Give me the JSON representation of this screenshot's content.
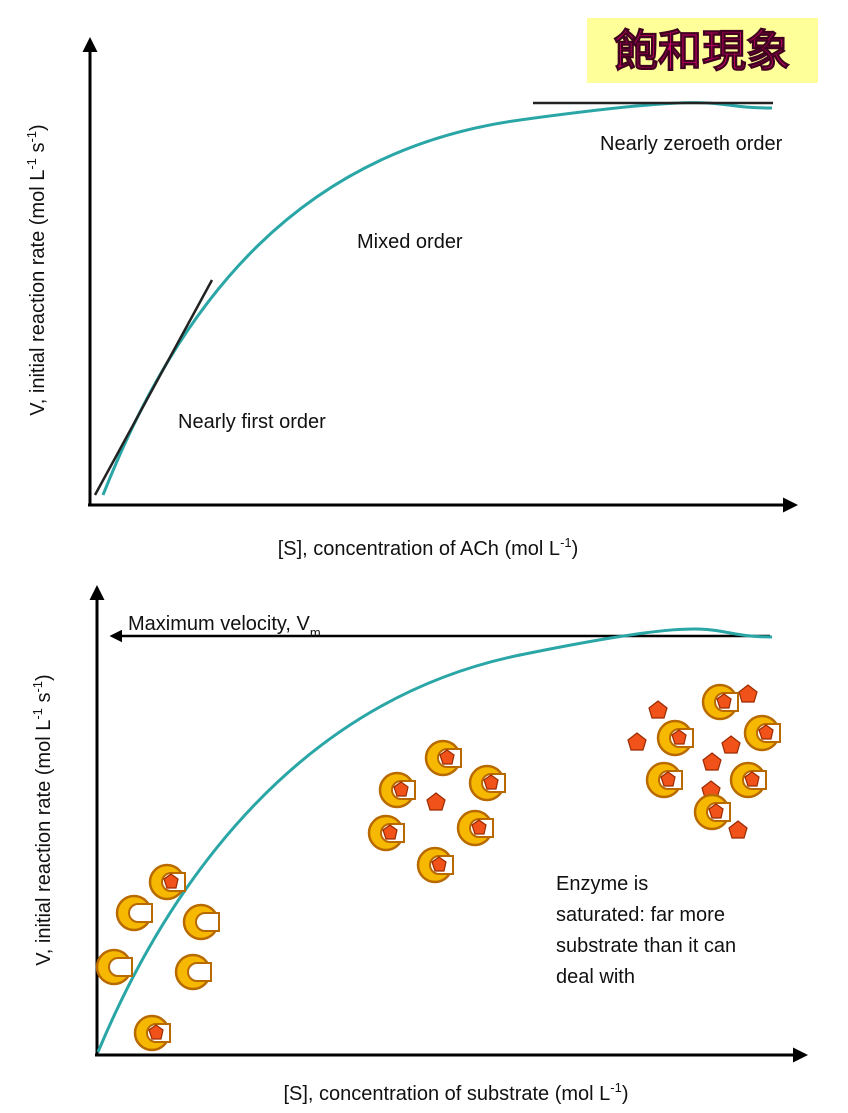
{
  "title": "飽和現象",
  "top_graph": {
    "y_label": [
      "V, initial reaction rate (mol L",
      "-1",
      " s",
      "-1",
      ")"
    ],
    "x_label": [
      "[S], concentration of ACh (mol L",
      "-1",
      ")"
    ],
    "annotations": [
      "Nearly zeroeth order",
      "Mixed order",
      "Nearly first order"
    ]
  },
  "bottom_graph": {
    "y_label": [
      "V, initial reaction rate (mol L",
      "-1",
      " s",
      "-1",
      ")"
    ],
    "x_label": [
      "[S], concentration of substrate (mol L",
      "-1",
      ")"
    ],
    "max_label": [
      "Maximum velocity, V",
      "m"
    ],
    "note": [
      "Enzyme is",
      "saturated: far more",
      "substrate than it can",
      "deal with"
    ]
  }
}
